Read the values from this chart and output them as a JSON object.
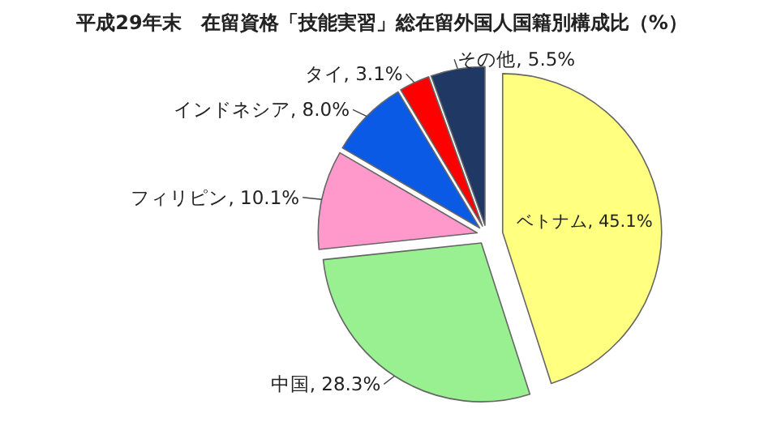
{
  "chart_data": {
    "type": "pie",
    "title": "平成29年末　在留資格「技能実習」総在留外国人国籍別構成比（%）",
    "categories": [
      "ベトナム",
      "中国",
      "フィリピン",
      "インドネシア",
      "タイ",
      "その他"
    ],
    "values": [
      45.1,
      28.3,
      10.1,
      8.0,
      3.1,
      5.5
    ],
    "value_labels": [
      "45.1%",
      "28.3%",
      "10.1%",
      "8.0%",
      "3.1%",
      "5.5%"
    ],
    "colors": [
      "#ffff80",
      "#99f090",
      "#ff99cc",
      "#0a5ae6",
      "#ff0000",
      "#1f3864"
    ]
  }
}
